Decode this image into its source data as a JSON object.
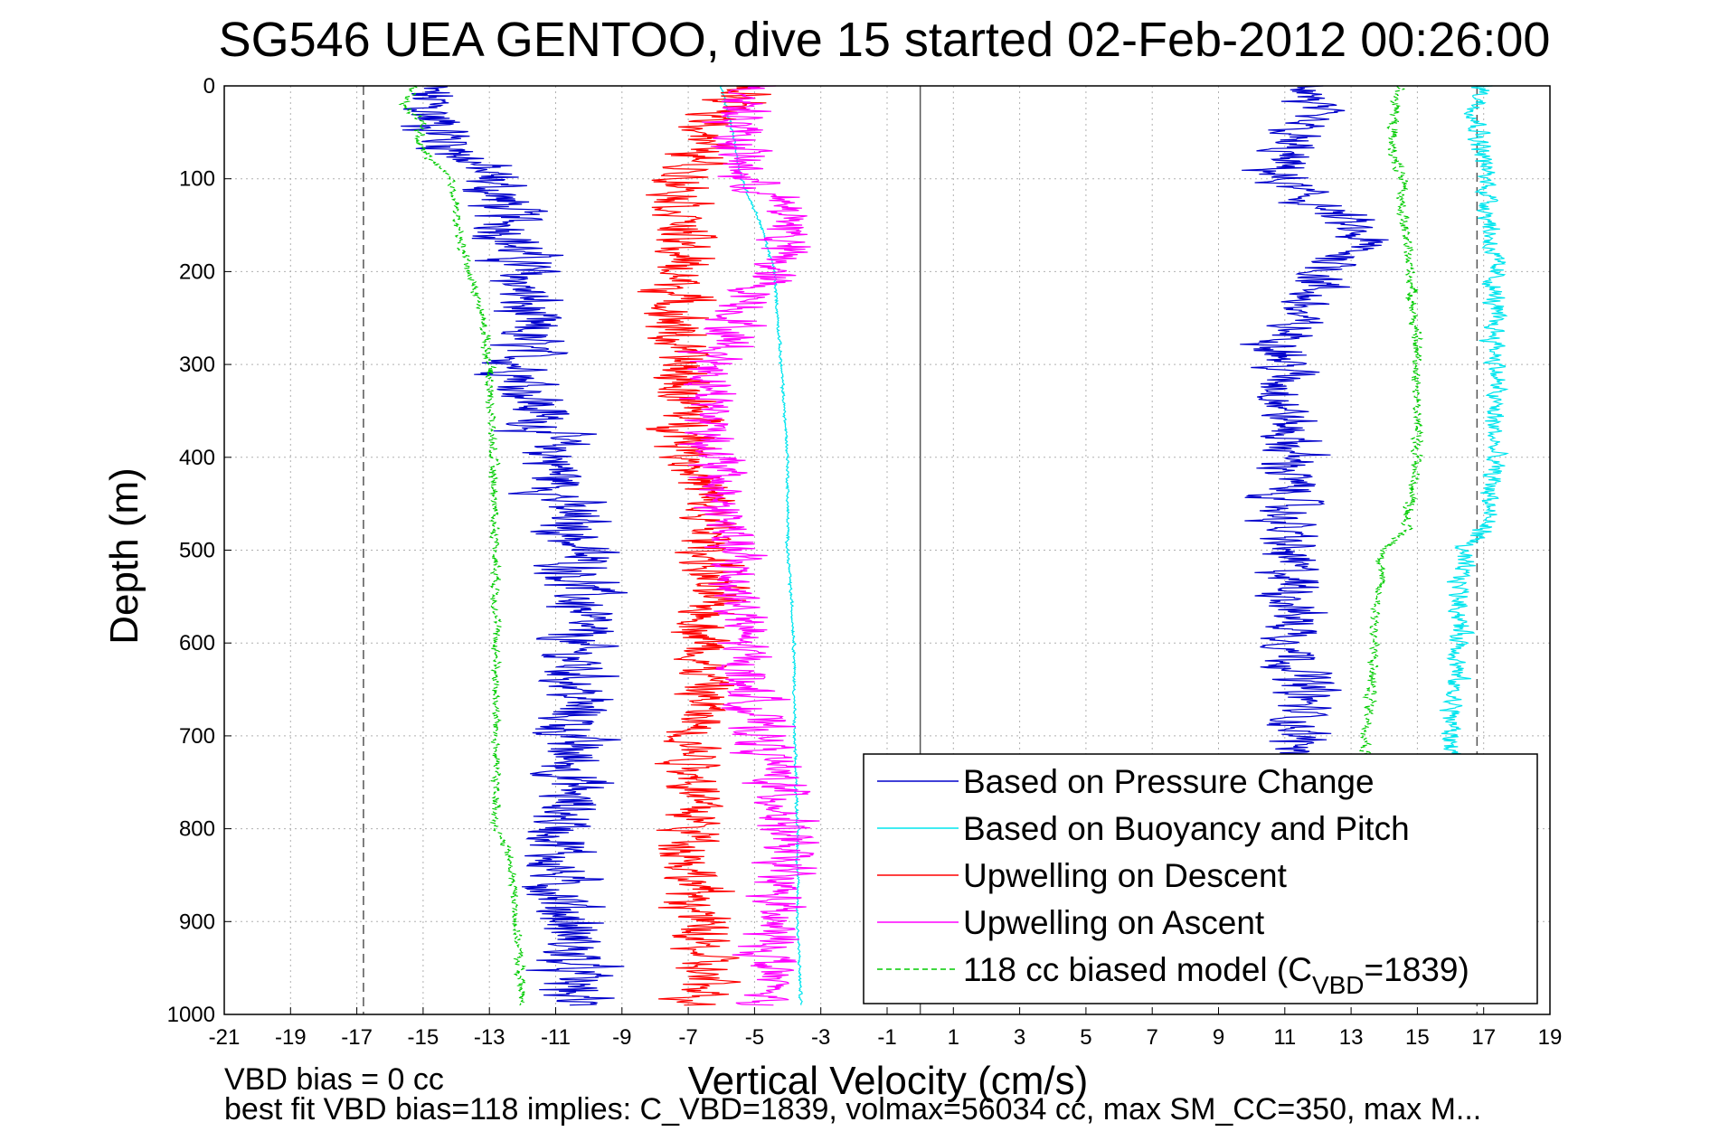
{
  "chart_data": {
    "type": "line",
    "title": "SG546 UEA GENTOO, dive 15 started 02-Feb-2012 00:26:00",
    "xlabel": "Vertical Velocity (cm/s)",
    "ylabel": "Depth (m)",
    "xlim": [
      -21,
      19
    ],
    "ylim": [
      0,
      1000
    ],
    "y_reversed": true,
    "grid": true,
    "xticks": [
      -21,
      -19,
      -17,
      -15,
      -13,
      -11,
      -9,
      -7,
      -5,
      -3,
      -1,
      1,
      3,
      5,
      7,
      9,
      11,
      13,
      15,
      17,
      19
    ],
    "yticks": [
      0,
      100,
      200,
      300,
      400,
      500,
      600,
      700,
      800,
      900,
      1000
    ],
    "xtick_labels": [
      "-21",
      "-19",
      "-17",
      "-15",
      "-13",
      "-11",
      "-9",
      "-7",
      "-5",
      "-3",
      "-1",
      "1",
      "3",
      "5",
      "7",
      "9",
      "11",
      "13",
      "15",
      "17",
      "19"
    ],
    "ytick_labels": [
      "0",
      "100",
      "200",
      "300",
      "400",
      "500",
      "600",
      "700",
      "800",
      "900",
      "1000"
    ],
    "vlines": [
      {
        "x": -16.8,
        "style": "dashed",
        "color": "#555555"
      },
      {
        "x": 0,
        "style": "solid",
        "color": "#555555"
      },
      {
        "x": 16.8,
        "style": "dashed",
        "color": "#555555"
      }
    ],
    "legend": {
      "placement": "bottom-right",
      "entries": [
        {
          "label": "Based on Pressure Change",
          "color": "#0000cc",
          "style": "solid"
        },
        {
          "label": "Based on Buoyancy and Pitch",
          "color": "#00e5ee",
          "style": "solid"
        },
        {
          "label": "Upwelling on Descent",
          "color": "#ff0000",
          "style": "solid"
        },
        {
          "label": "Upwelling on Ascent",
          "color": "#ff00ff",
          "style": "solid"
        },
        {
          "label_prefix": "118 cc biased model (C",
          "label_sub": "VBD",
          "label_suffix": "=1839)",
          "color": "#00cc00",
          "style": "dashed"
        }
      ]
    },
    "series": [
      {
        "name": "Based on Pressure Change",
        "part": "descent",
        "color": "#0000cc",
        "noise": 1.0,
        "depth": [
          0,
          30,
          60,
          100,
          150,
          200,
          250,
          300,
          350,
          400,
          450,
          500,
          550,
          600,
          650,
          700,
          750,
          800,
          850,
          900,
          950,
          990
        ],
        "x": [
          -15.0,
          -14.8,
          -14.2,
          -13.0,
          -12.3,
          -12.0,
          -12.0,
          -12.0,
          -11.5,
          -11.0,
          -10.8,
          -10.3,
          -10.2,
          -10.5,
          -10.3,
          -10.6,
          -10.5,
          -10.8,
          -11.0,
          -10.6,
          -10.5,
          -10.5
        ]
      },
      {
        "name": "Based on Pressure Change",
        "part": "ascent",
        "color": "#0000cc",
        "noise": 0.85,
        "depth": [
          0,
          30,
          60,
          100,
          140,
          170,
          200,
          250,
          300,
          350,
          400,
          450,
          500,
          550,
          600,
          650,
          700,
          720
        ],
        "x": [
          12.0,
          11.5,
          11.0,
          10.7,
          12.5,
          13.3,
          12.3,
          11.2,
          11.0,
          11.0,
          11.2,
          11.0,
          11.0,
          11.3,
          11.3,
          11.6,
          11.4,
          11.5
        ]
      },
      {
        "name": "Based on Buoyancy and Pitch",
        "part": "descent",
        "color": "#00e5ee",
        "noise": 0.04,
        "depth": [
          0,
          60,
          100,
          150,
          200,
          300,
          400,
          500,
          600,
          700,
          800,
          900,
          990
        ],
        "x": [
          -6.0,
          -5.6,
          -5.4,
          -4.8,
          -4.4,
          -4.2,
          -4.0,
          -4.0,
          -3.8,
          -3.8,
          -3.7,
          -3.7,
          -3.6
        ]
      },
      {
        "name": "Based on Buoyancy and Pitch",
        "part": "ascent",
        "color": "#00e5ee",
        "noise": 0.3,
        "depth": [
          0,
          30,
          60,
          100,
          150,
          200,
          250,
          300,
          350,
          400,
          450,
          480,
          500,
          550,
          600,
          650,
          700,
          720
        ],
        "x": [
          17.0,
          16.8,
          16.9,
          17.1,
          17.2,
          17.3,
          17.3,
          17.4,
          17.3,
          17.3,
          17.2,
          17.0,
          16.3,
          16.3,
          16.3,
          16.1,
          16.0,
          16.1
        ]
      },
      {
        "name": "Upwelling on Descent",
        "part": "descent",
        "color": "#ff0000",
        "noise": 0.85,
        "depth": [
          0,
          30,
          60,
          100,
          150,
          200,
          250,
          300,
          350,
          400,
          450,
          500,
          550,
          600,
          650,
          700,
          750,
          800,
          850,
          900,
          950,
          990
        ],
        "x": [
          -5.5,
          -6.0,
          -6.5,
          -7.0,
          -7.2,
          -7.3,
          -7.4,
          -7.3,
          -7.0,
          -6.8,
          -6.5,
          -6.3,
          -6.4,
          -6.5,
          -6.5,
          -6.8,
          -6.7,
          -6.8,
          -6.9,
          -6.7,
          -6.6,
          -6.6
        ]
      },
      {
        "name": "Upwelling on Ascent",
        "part": "ascent",
        "color": "#ff00ff",
        "noise": 0.8,
        "depth": [
          0,
          30,
          60,
          100,
          130,
          150,
          200,
          250,
          300,
          350,
          400,
          450,
          500,
          550,
          600,
          650,
          700,
          750,
          800,
          850,
          900,
          950,
          990
        ],
        "x": [
          -5.0,
          -5.3,
          -5.5,
          -5.3,
          -4.2,
          -3.8,
          -4.5,
          -5.5,
          -6.2,
          -6.3,
          -6.2,
          -6.0,
          -5.7,
          -5.5,
          -5.4,
          -5.2,
          -4.8,
          -4.3,
          -4.0,
          -4.2,
          -4.5,
          -4.5,
          -4.6
        ]
      },
      {
        "name": "118 cc biased model (CVBD=1839)",
        "part": "descent",
        "color": "#00cc00",
        "noise": 0.12,
        "dashed": true,
        "depth": [
          0,
          20,
          40,
          60,
          90,
          100,
          120,
          150,
          200,
          250,
          300,
          400,
          500,
          600,
          700,
          800,
          820,
          850,
          900,
          990
        ],
        "x": [
          -15.3,
          -15.6,
          -15.0,
          -15.2,
          -14.5,
          -14.2,
          -14.0,
          -14.0,
          -13.6,
          -13.2,
          -13.0,
          -12.9,
          -12.8,
          -12.8,
          -12.8,
          -12.8,
          -12.5,
          -12.3,
          -12.2,
          -12.0
        ]
      },
      {
        "name": "118 cc biased model (CVBD=1839)",
        "part": "ascent",
        "color": "#00cc00",
        "noise": 0.15,
        "dashed": true,
        "depth": [
          0,
          30,
          60,
          100,
          150,
          200,
          250,
          300,
          350,
          400,
          450,
          480,
          500,
          550,
          600,
          650,
          700,
          720
        ],
        "x": [
          14.5,
          14.3,
          14.2,
          14.5,
          14.6,
          14.8,
          14.9,
          15.0,
          15.0,
          15.0,
          14.8,
          14.6,
          14.0,
          13.8,
          13.7,
          13.6,
          13.5,
          13.4
        ]
      }
    ]
  },
  "notes": {
    "line1": "VBD bias = 0 cc",
    "line2": "best fit VBD bias=118 implies: C_VBD=1839, volmax=56034 cc, max SM_CC=350, max M..."
  }
}
